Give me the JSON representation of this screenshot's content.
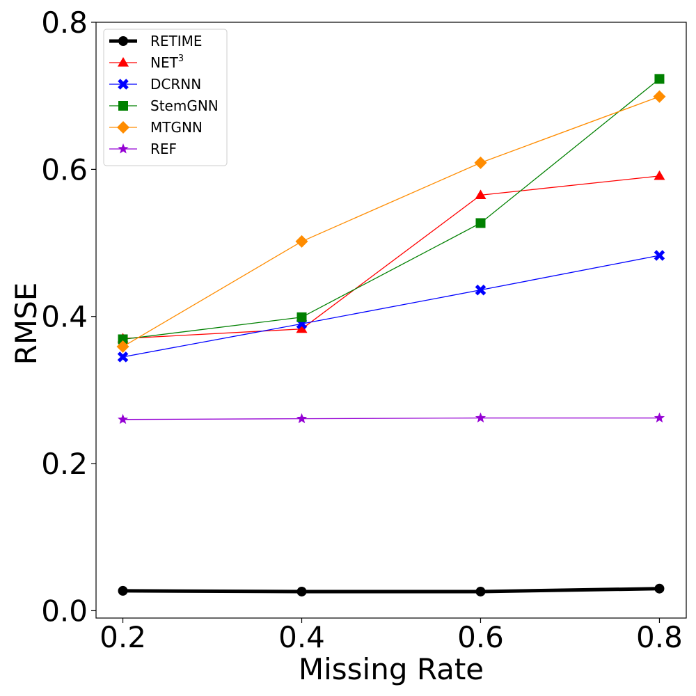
{
  "chart_data": {
    "type": "line",
    "xlabel": "Missing Rate",
    "ylabel": "RMSE",
    "x": [
      0.2,
      0.4,
      0.6,
      0.8
    ],
    "x_tick_labels": [
      "0.2",
      "0.4",
      "0.6",
      "0.8"
    ],
    "xlim": [
      0.17,
      0.83
    ],
    "ylim": [
      -0.01,
      0.8
    ],
    "y_ticks": [
      0.0,
      0.2,
      0.4,
      0.6,
      0.8
    ],
    "y_tick_labels": [
      "0.0",
      "0.2",
      "0.4",
      "0.6",
      "0.8"
    ],
    "grid": false,
    "legend_position": "top-left",
    "series": [
      {
        "name": "RETIME",
        "name_sup": "",
        "color": "#000000",
        "marker": "circle",
        "emphasis": "bold",
        "values": [
          0.027,
          0.026,
          0.026,
          0.03
        ]
      },
      {
        "name": "NET",
        "name_sup": "3",
        "color": "#ff0000",
        "marker": "triangle",
        "emphasis": "normal",
        "values": [
          0.37,
          0.383,
          0.565,
          0.591
        ]
      },
      {
        "name": "DCRNN",
        "name_sup": "",
        "color": "#0000ff",
        "marker": "x-filled",
        "emphasis": "normal",
        "values": [
          0.345,
          0.39,
          0.436,
          0.483
        ]
      },
      {
        "name": "StemGNN",
        "name_sup": "",
        "color": "#008000",
        "marker": "square",
        "emphasis": "normal",
        "values": [
          0.369,
          0.399,
          0.527,
          0.723
        ]
      },
      {
        "name": "MTGNN",
        "name_sup": "",
        "color": "#ff8c00",
        "marker": "diamond",
        "emphasis": "normal",
        "values": [
          0.359,
          0.502,
          0.609,
          0.699
        ]
      },
      {
        "name": "REF",
        "name_sup": "",
        "color": "#9400d3",
        "marker": "star",
        "emphasis": "normal",
        "values": [
          0.26,
          0.261,
          0.262,
          0.262
        ]
      }
    ]
  }
}
